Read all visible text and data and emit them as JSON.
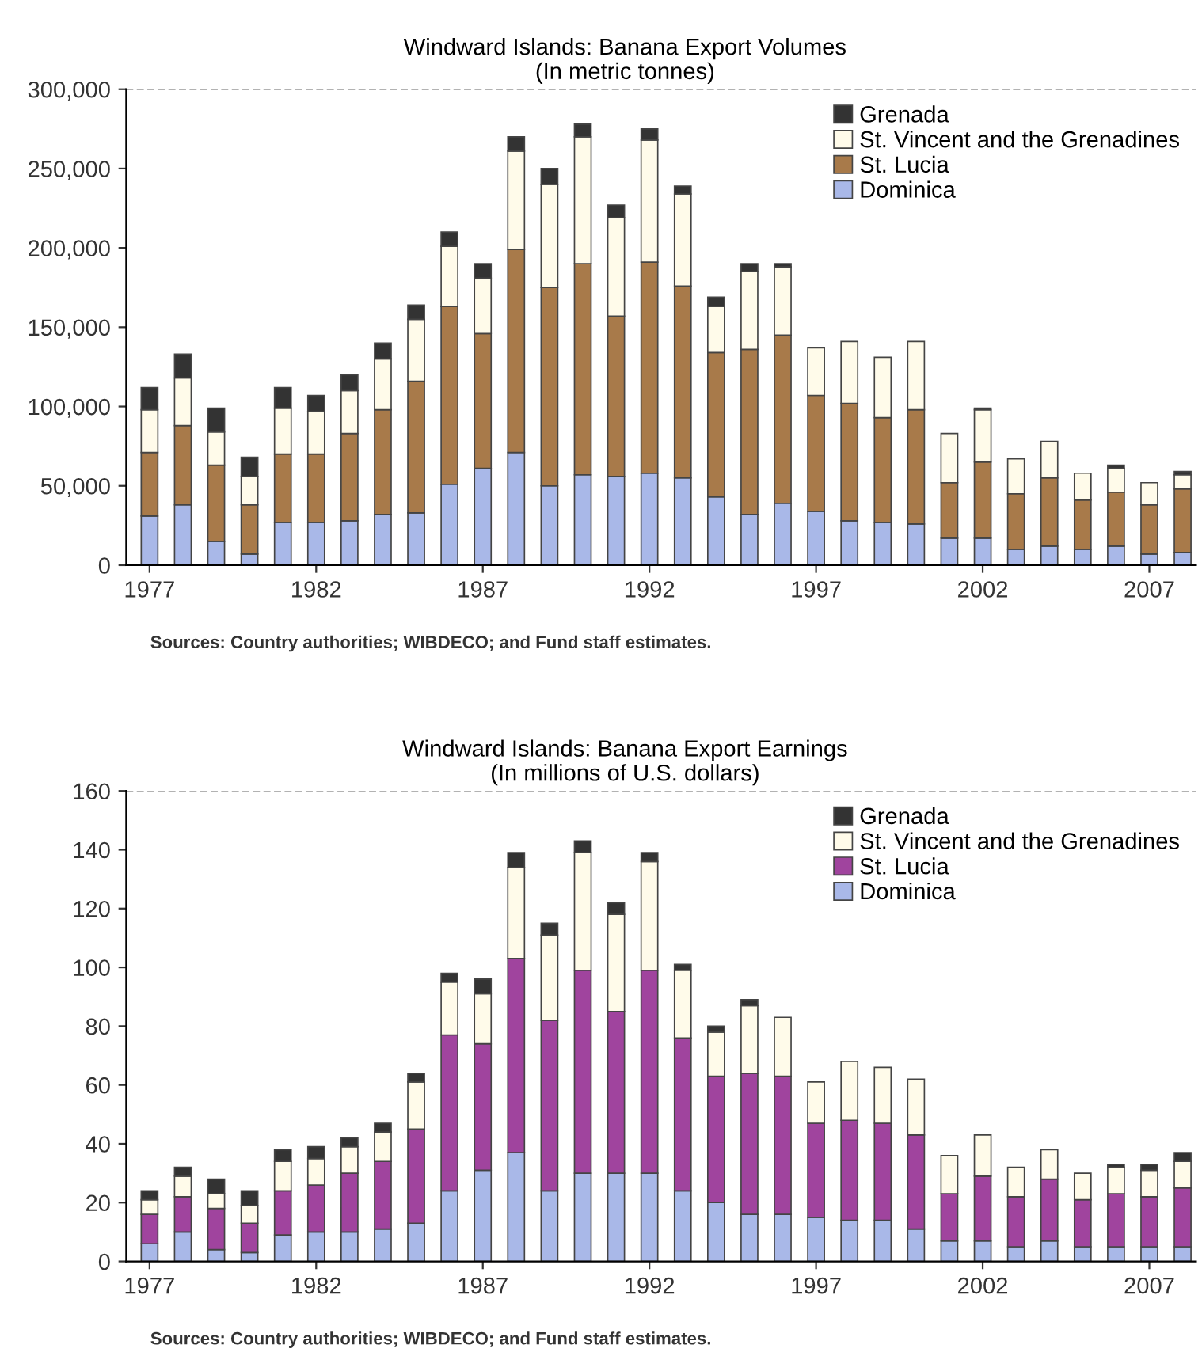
{
  "chart_data": [
    {
      "type": "bar",
      "stacked": true,
      "title": "Windward Islands: Banana Export Volumes",
      "subtitle": "(In metric tonnes)",
      "x": [
        1977,
        1978,
        1979,
        1980,
        1981,
        1982,
        1983,
        1984,
        1985,
        1986,
        1987,
        1988,
        1989,
        1990,
        1991,
        1992,
        1993,
        1994,
        1995,
        1996,
        1997,
        1998,
        1999,
        2000,
        2001,
        2002,
        2003,
        2004,
        2005,
        2006,
        2007,
        2008
      ],
      "xlim": [
        1976.3,
        2008.4
      ],
      "xticks": [
        1977,
        1982,
        1987,
        1992,
        1997,
        2002,
        2007
      ],
      "ylim": [
        0,
        300000
      ],
      "yticks": [
        0,
        {
          "value": 50000,
          "label": "50,000"
        },
        {
          "value": 100000,
          "label": "100,000"
        },
        {
          "value": 150000,
          "label": "150,000"
        },
        {
          "value": 200000,
          "label": "200,000"
        },
        {
          "value": 250000,
          "label": "250,000"
        },
        {
          "value": 300000,
          "label": "300,000"
        }
      ],
      "legend": "top right",
      "series": [
        {
          "name": "Dominica",
          "color": "#a9b8e8",
          "values": [
            31000,
            38000,
            15000,
            7000,
            27000,
            27000,
            28000,
            32000,
            33000,
            51000,
            61000,
            71000,
            50000,
            57000,
            56000,
            58000,
            55000,
            43000,
            32000,
            39000,
            34000,
            28000,
            27000,
            26000,
            17000,
            17000,
            10000,
            12000,
            10000,
            12000,
            7000,
            8000
          ]
        },
        {
          "name": "St. Lucia",
          "color": "#a87a4a",
          "values": [
            40000,
            50000,
            48000,
            31000,
            43000,
            43000,
            55000,
            66000,
            83000,
            112000,
            85000,
            128000,
            125000,
            133000,
            101000,
            133000,
            121000,
            91000,
            104000,
            106000,
            73000,
            74000,
            66000,
            72000,
            35000,
            48000,
            35000,
            43000,
            31000,
            34000,
            31000,
            40000
          ]
        },
        {
          "name": "St. Vincent and the Grenadines",
          "color": "#fffbea",
          "values": [
            27000,
            30000,
            21000,
            18000,
            29000,
            27000,
            27000,
            32000,
            39000,
            38000,
            35000,
            62000,
            65000,
            80000,
            62000,
            77000,
            58000,
            29000,
            49000,
            43000,
            30000,
            39000,
            38000,
            43000,
            31000,
            33000,
            22000,
            23000,
            17000,
            15000,
            14000,
            9000
          ]
        },
        {
          "name": "Grenada",
          "color": "#333333",
          "values": [
            14000,
            15000,
            15000,
            12000,
            13000,
            10000,
            10000,
            10000,
            9000,
            9000,
            9000,
            9000,
            10000,
            8000,
            8000,
            7000,
            5000,
            6000,
            5000,
            2000,
            0,
            0,
            0,
            0,
            0,
            1000,
            0,
            0,
            0,
            2000,
            0,
            2000
          ]
        }
      ],
      "annotations": [
        "Sources: Country authorities; WIBDECO; and Fund staff estimates."
      ]
    },
    {
      "type": "bar",
      "stacked": true,
      "title": "Windward Islands: Banana Export Earnings",
      "subtitle": "(In millions of U.S. dollars)",
      "x": [
        1977,
        1978,
        1979,
        1980,
        1981,
        1982,
        1983,
        1984,
        1985,
        1986,
        1987,
        1988,
        1989,
        1990,
        1991,
        1992,
        1993,
        1994,
        1995,
        1996,
        1997,
        1998,
        1999,
        2000,
        2001,
        2002,
        2003,
        2004,
        2005,
        2006,
        2007,
        2008
      ],
      "xlim": [
        1976.3,
        2008.4
      ],
      "xticks": [
        1977,
        1982,
        1987,
        1992,
        1997,
        2002,
        2007
      ],
      "ylim": [
        0,
        160
      ],
      "yticks": [
        0,
        20,
        40,
        60,
        80,
        100,
        120,
        140,
        160
      ],
      "legend": "top right",
      "series": [
        {
          "name": "Dominica",
          "color": "#a9b8e8",
          "values": [
            6,
            10,
            4,
            3,
            9,
            10,
            10,
            11,
            13,
            24,
            31,
            37,
            24,
            30,
            30,
            30,
            24,
            20,
            16,
            16,
            15,
            14,
            14,
            11,
            7,
            7,
            5,
            7,
            5,
            5,
            5,
            5
          ]
        },
        {
          "name": "St. Lucia",
          "color": "#a0449e",
          "values": [
            10,
            12,
            14,
            10,
            15,
            16,
            20,
            23,
            32,
            53,
            43,
            66,
            58,
            69,
            55,
            69,
            52,
            43,
            48,
            47,
            32,
            34,
            33,
            32,
            16,
            22,
            17,
            21,
            16,
            18,
            17,
            20
          ]
        },
        {
          "name": "St. Vincent and the Grenadines",
          "color": "#fffbea",
          "values": [
            5,
            7,
            5,
            6,
            10,
            9,
            9,
            10,
            16,
            18,
            17,
            31,
            29,
            40,
            33,
            37,
            23,
            15,
            23,
            20,
            14,
            20,
            19,
            19,
            13,
            14,
            10,
            10,
            9,
            9,
            9,
            9
          ]
        },
        {
          "name": "Grenada",
          "color": "#333333",
          "values": [
            3,
            3,
            5,
            5,
            4,
            4,
            3,
            3,
            3,
            3,
            5,
            5,
            4,
            4,
            4,
            3,
            2,
            2,
            2,
            0,
            0,
            0,
            0,
            0,
            0,
            0,
            0,
            0,
            0,
            1,
            2,
            3
          ]
        }
      ],
      "annotations": [
        "Sources: Country authorities; WIBDECO; and Fund staff estimates."
      ]
    }
  ]
}
